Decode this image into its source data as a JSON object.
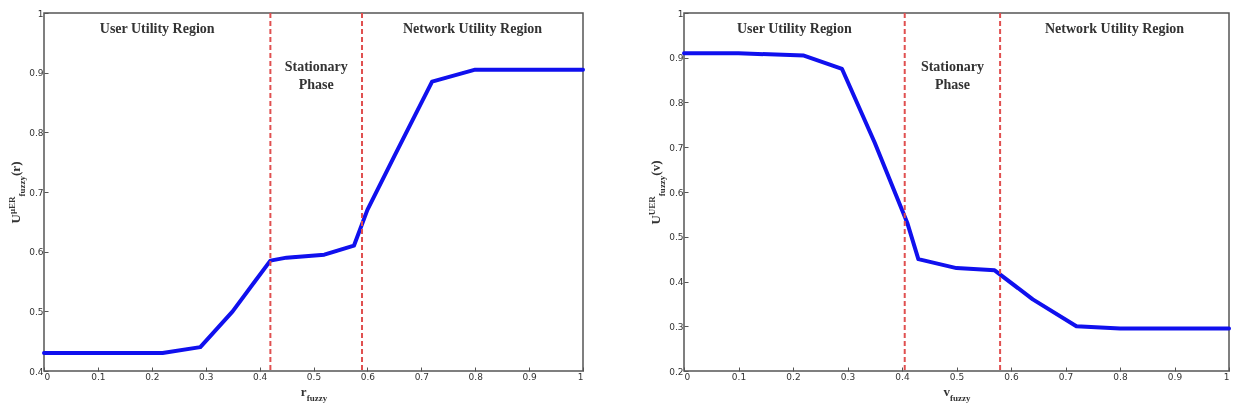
{
  "chart_data": [
    {
      "type": "line",
      "xlabel": "r$_{fuzzy}$",
      "ylabel": "U$^{μER}$$_{fuzzy}$(r)",
      "x": [
        0,
        0.1,
        0.22,
        0.29,
        0.35,
        0.42,
        0.45,
        0.52,
        0.575,
        0.6,
        0.65,
        0.72,
        0.8,
        0.9,
        1
      ],
      "series": [
        {
          "color": "#1010ee",
          "values": [
            0.43,
            0.43,
            0.43,
            0.44,
            0.5,
            0.585,
            0.59,
            0.595,
            0.61,
            0.67,
            0.76,
            0.885,
            0.905,
            0.905,
            0.905
          ]
        }
      ],
      "xlim": [
        0,
        1
      ],
      "xticks": [
        0,
        0.1,
        0.2,
        0.3,
        0.4,
        0.5,
        0.6,
        0.7,
        0.8,
        0.9,
        1
      ],
      "ylim": [
        0.4,
        1
      ],
      "yticks": [
        0.4,
        0.5,
        0.6,
        0.7,
        0.8,
        0.9,
        1
      ],
      "line_style": "solid",
      "marker": "none",
      "grid": false,
      "ref_lines": [
        {
          "axis": "x",
          "value": 0.42,
          "color": "#e05050",
          "line_style": "dashed"
        },
        {
          "axis": "x",
          "value": 0.59,
          "color": "#e05050",
          "line_style": "dashed"
        }
      ],
      "annotations": [
        "User Utility Region",
        "Stationary\nPhase",
        "Network Utility Region"
      ]
    },
    {
      "type": "line",
      "xlabel": "v$_{fuzzy}$",
      "ylabel": "U$^{UER}$$_{fuzzy}$(v)",
      "x": [
        0,
        0.1,
        0.22,
        0.29,
        0.35,
        0.41,
        0.43,
        0.5,
        0.57,
        0.64,
        0.72,
        0.8,
        0.9,
        1
      ],
      "series": [
        {
          "color": "#1010ee",
          "values": [
            0.91,
            0.91,
            0.905,
            0.875,
            0.71,
            0.53,
            0.45,
            0.43,
            0.425,
            0.36,
            0.3,
            0.295,
            0.295,
            0.295
          ]
        }
      ],
      "xlim": [
        0,
        1
      ],
      "xticks": [
        0,
        0.1,
        0.2,
        0.3,
        0.4,
        0.5,
        0.6,
        0.7,
        0.8,
        0.9,
        1
      ],
      "ylim": [
        0.2,
        1
      ],
      "yticks": [
        0.2,
        0.3,
        0.4,
        0.5,
        0.6,
        0.7,
        0.8,
        0.9,
        1
      ],
      "line_style": "solid",
      "marker": "none",
      "grid": false,
      "ref_lines": [
        {
          "axis": "x",
          "value": 0.405,
          "color": "#e05050",
          "line_style": "dashed"
        },
        {
          "axis": "x",
          "value": 0.58,
          "color": "#e05050",
          "line_style": "dashed"
        }
      ],
      "annotations": [
        "User Utility Region",
        "Stationary\nPhase",
        "Network Utility Region"
      ]
    }
  ]
}
